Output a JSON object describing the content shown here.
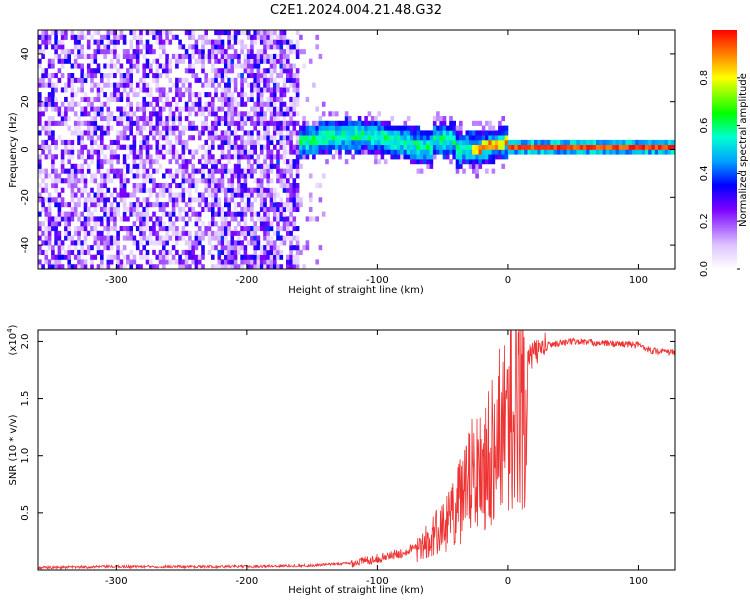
{
  "title": "C2E1.2024.004.21.48.G32",
  "chart_data": [
    {
      "type": "heatmap",
      "title": "C2E1.2024.004.21.48.G32",
      "xlabel": "Height of straight line (km)",
      "ylabel": "Frequency (Hz)",
      "xlim": [
        -360,
        128
      ],
      "ylim": [
        -50,
        50
      ],
      "xticks": [
        -300,
        -200,
        -100,
        0,
        100
      ],
      "xtick_labels": [
        "-300",
        "-200",
        "-100",
        "0",
        "100"
      ],
      "yticks": [
        -40,
        -20,
        0,
        20,
        40
      ],
      "ytick_labels": [
        "-40",
        "-20",
        "0",
        "20",
        "40"
      ],
      "colorbar": {
        "label": "Normalized spectral amplitude",
        "range": [
          0,
          1
        ],
        "ticks": [
          0.0,
          0.2,
          0.4,
          0.6,
          0.8
        ],
        "tick_labels": [
          "0.0",
          "0.2",
          "0.4",
          "0.6",
          "0.8"
        ],
        "stops": [
          {
            "v": 0.0,
            "c": "#ffffff"
          },
          {
            "v": 0.1,
            "c": "#ddc4ff"
          },
          {
            "v": 0.25,
            "c": "#7a00ff"
          },
          {
            "v": 0.35,
            "c": "#0000ff"
          },
          {
            "v": 0.45,
            "c": "#00a0ff"
          },
          {
            "v": 0.55,
            "c": "#00ffd0"
          },
          {
            "v": 0.65,
            "c": "#00ff00"
          },
          {
            "v": 0.8,
            "c": "#ffff00"
          },
          {
            "v": 0.9,
            "c": "#ff7f00"
          },
          {
            "v": 1.0,
            "c": "#ff0000"
          }
        ]
      },
      "regions": [
        {
          "x_range": [
            -360,
            -160
          ],
          "description": "broadband noise across all frequencies, amplitude ~0.1-0.3"
        },
        {
          "x_range": [
            -160,
            -140
          ],
          "description": "sparse noise"
        },
        {
          "x_range": [
            -160,
            0
          ],
          "freq_center": [
            0,
            8
          ],
          "amplitude": [
            0.3,
            0.6
          ]
        },
        {
          "x_range": [
            0,
            128
          ],
          "freq_center": 0,
          "amplitude": [
            0.8,
            1.0
          ]
        }
      ]
    },
    {
      "type": "line",
      "xlabel": "Height of straight line (km)",
      "ylabel": "SNR (10 * v/v)",
      "scale_label": "(x10",
      "scale_exp": "4",
      "scale_close": ")",
      "xlim": [
        -360,
        128
      ],
      "ylim": [
        0,
        2.1
      ],
      "xticks": [
        -300,
        -200,
        -100,
        0,
        100
      ],
      "xtick_labels": [
        "-300",
        "-200",
        "-100",
        "0",
        "100"
      ],
      "yticks": [
        0.5,
        1.0,
        1.5,
        2.0
      ],
      "ytick_labels": [
        "0.5",
        "1.0",
        "1.5",
        "2.0"
      ],
      "color": "#ee3333",
      "series": [
        {
          "name": "SNR",
          "x": [
            -360,
            -300,
            -200,
            -150,
            -120,
            -100,
            -80,
            -60,
            -40,
            -30,
            -20,
            -10,
            0,
            10,
            20,
            30,
            50,
            80,
            100,
            110,
            128
          ],
          "y": [
            0.02,
            0.03,
            0.03,
            0.04,
            0.06,
            0.1,
            0.15,
            0.3,
            0.6,
            0.9,
            1.1,
            1.3,
            1.55,
            1.75,
            1.9,
            1.97,
            2.0,
            1.98,
            1.97,
            1.92,
            1.9
          ]
        }
      ]
    }
  ]
}
